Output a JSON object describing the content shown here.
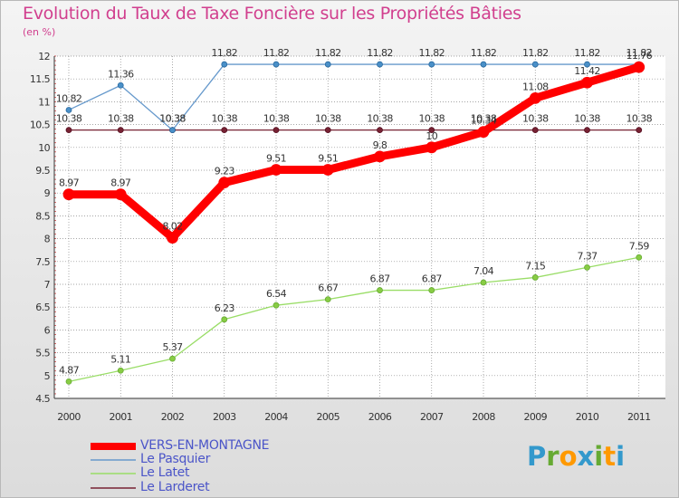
{
  "title": "Evolution du Taux de Taxe Foncière sur les Propriétés Bâties",
  "subtitle": "(en %)",
  "colors": {
    "title": "#d13f8e",
    "vers": "#ff0000",
    "pasquier": "#6699cc",
    "latet": "#99dd66",
    "larderet": "#772233",
    "grid": "#888888"
  },
  "logo": {
    "text": "Proxiti",
    "letters": [
      "P",
      "r",
      "o",
      "x",
      "i",
      "t",
      "i"
    ],
    "letter_colors": [
      "#3399cc",
      "#66aa33",
      "#ff9900",
      "#3399cc",
      "#66aa33",
      "#ff9900",
      "#3399cc"
    ]
  },
  "chart_data": {
    "type": "line",
    "title": "Evolution du Taux de Taxe Foncière sur les Propriétés Bâties",
    "ylabel": "(en %)",
    "x": [
      "2000",
      "2001",
      "2002",
      "2003",
      "2004",
      "2005",
      "2006",
      "2007",
      "2008",
      "2009",
      "2010",
      "2011"
    ],
    "ylim": [
      4.5,
      12
    ],
    "yticks": [
      "4.5",
      "5",
      "5.5",
      "6",
      "6.5",
      "7",
      "7.5",
      "8",
      "8.5",
      "9",
      "9.5",
      "10",
      "10.5",
      "11",
      "11.5",
      "12"
    ],
    "series": [
      {
        "name": "VERS-EN-MONTAGNE",
        "color": "#ff0000",
        "values": [
          8.97,
          8.97,
          8.02,
          9.23,
          9.51,
          9.51,
          9.8,
          10.0,
          10.34,
          11.08,
          11.42,
          11.76
        ],
        "labels": [
          "8.97",
          "8.97",
          "8.02",
          "9.23",
          "9.51",
          "9.51",
          "9.8",
          "10",
          "10.34",
          "11.08",
          "11.42",
          "11.76"
        ]
      },
      {
        "name": "Le Pasquier",
        "color": "#6699cc",
        "values": [
          10.82,
          11.36,
          10.38,
          11.82,
          11.82,
          11.82,
          11.82,
          11.82,
          11.82,
          11.82,
          11.82,
          11.82
        ],
        "labels": [
          "10.82",
          "11.36",
          "10.38",
          "11.82",
          "11.82",
          "11.82",
          "11.82",
          "11.82",
          "11.82",
          "11.82",
          "11.82",
          "11.82"
        ]
      },
      {
        "name": "Le Latet",
        "color": "#99dd66",
        "values": [
          4.87,
          5.11,
          5.37,
          6.23,
          6.54,
          6.67,
          6.87,
          6.87,
          7.04,
          7.15,
          7.37,
          7.59
        ],
        "labels": [
          "4.87",
          "5.11",
          "5.37",
          "6.23",
          "6.54",
          "6.67",
          "6.87",
          "6.87",
          "7.04",
          "7.15",
          "7.37",
          "7.59"
        ]
      },
      {
        "name": "Le Larderet",
        "color": "#772233",
        "values": [
          10.38,
          10.38,
          10.38,
          10.38,
          10.38,
          10.38,
          10.38,
          10.38,
          10.38,
          10.38,
          10.38,
          10.38
        ],
        "labels": [
          "10.38",
          "10.38",
          "10.38",
          "10.38",
          "10.38",
          "10.38",
          "10.38",
          "10.38",
          "10.38",
          "10.38",
          "10.38",
          "10.38"
        ]
      }
    ],
    "legend": [
      "VERS-EN-MONTAGNE",
      "Le Pasquier",
      "Le Latet",
      "Le Larderet"
    ]
  }
}
